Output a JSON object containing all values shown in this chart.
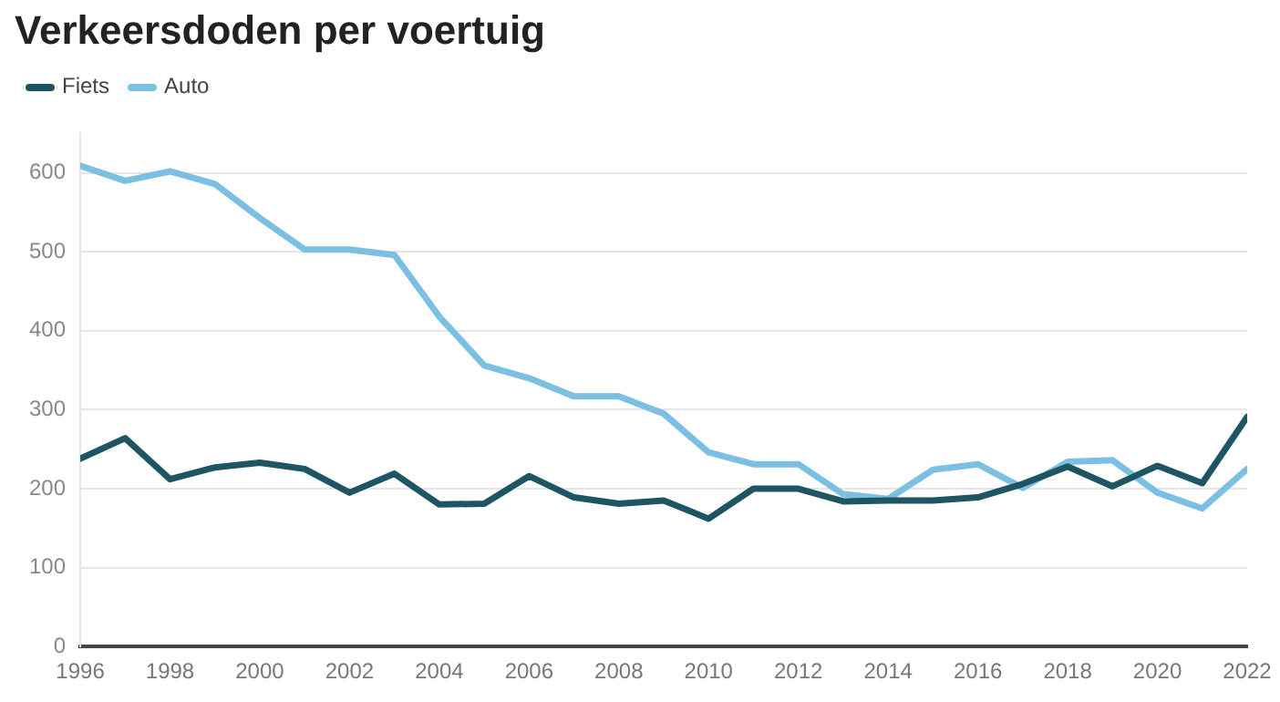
{
  "chart_data": {
    "type": "line",
    "title": "Verkeersdoden per voertuig",
    "x": [
      1996,
      1997,
      1998,
      1999,
      2000,
      2001,
      2002,
      2003,
      2004,
      2005,
      2006,
      2007,
      2008,
      2009,
      2010,
      2011,
      2012,
      2013,
      2014,
      2015,
      2016,
      2017,
      2018,
      2019,
      2020,
      2021,
      2022
    ],
    "series": [
      {
        "name": "Fiets",
        "color": "#1e5562",
        "values": [
          238,
          264,
          212,
          227,
          233,
          225,
          195,
          219,
          180,
          181,
          216,
          189,
          181,
          185,
          162,
          200,
          200,
          184,
          185,
          185,
          189,
          206,
          228,
          203,
          229,
          207,
          291
        ]
      },
      {
        "name": "Auto",
        "color": "#7bbfe2",
        "values": [
          609,
          590,
          602,
          586,
          543,
          503,
          503,
          496,
          418,
          356,
          340,
          317,
          317,
          295,
          246,
          231,
          231,
          193,
          187,
          224,
          231,
          201,
          234,
          236,
          195,
          175,
          225
        ]
      }
    ],
    "xlim": [
      1996,
      2022
    ],
    "xticks": [
      1996,
      1998,
      2000,
      2002,
      2004,
      2006,
      2008,
      2010,
      2012,
      2014,
      2016,
      2018,
      2020,
      2022
    ],
    "ylim": [
      0,
      650
    ],
    "yticks": [
      0,
      100,
      200,
      300,
      400,
      500,
      600
    ],
    "grid": "y",
    "legend": "top left",
    "marker": "none",
    "line_style": "solid"
  }
}
